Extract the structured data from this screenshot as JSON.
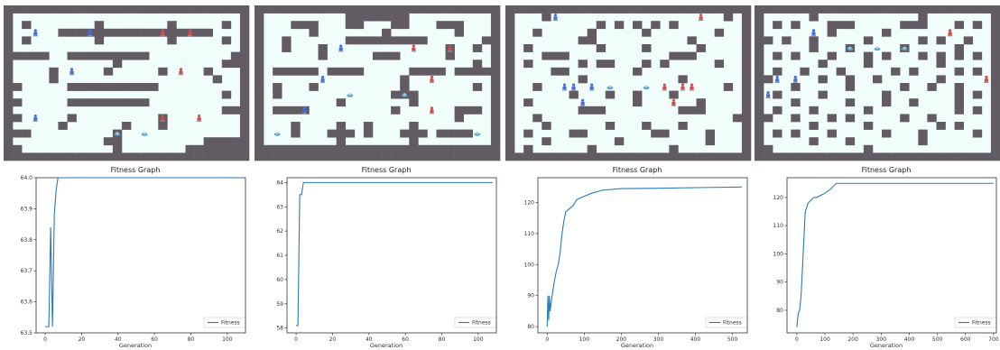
{
  "maps": [
    {
      "grid": [
        "###########################",
        "#.........................#",
        "#.#.......#.......#.....#.#",
        "#.....#################...#",
        "#.#.......#.......#.....#.#",
        "#.........................#",
        "#####..#########.........##",
        "#...........#...........###",
        "#....#.....#.....#....#...#",
        "#....#.................#..#",
        "##.....##########.........#",
        "#.......................#.#",
        "##.....#########..........#",
        "#.......................###",
        "##.....#.........#........#",
        "#.....#......#...#........#",
        "###.........#.............#",
        "#..........##.........#####",
        "##..........#.......#######",
        "###########################"
      ],
      "agents": [
        {
          "row": 3,
          "col": 3,
          "team": "blue"
        },
        {
          "row": 3,
          "col": 9,
          "team": "blue"
        },
        {
          "row": 3,
          "col": 17,
          "team": "red"
        },
        {
          "row": 3,
          "col": 20,
          "team": "red"
        },
        {
          "row": 8,
          "col": 7,
          "team": "blue"
        },
        {
          "row": 8,
          "col": 19,
          "team": "red"
        },
        {
          "row": 14,
          "col": 3,
          "team": "blue"
        },
        {
          "row": 14,
          "col": 17,
          "team": "red"
        },
        {
          "row": 14,
          "col": 21,
          "team": "red"
        }
      ],
      "items": [
        {
          "row": 16,
          "col": 12
        },
        {
          "row": 16,
          "col": 15
        }
      ]
    },
    {
      "grid": [
        "###########################",
        "#.........#######.........#",
        "#...###...##...##...###...#",
        "#.....#.......#.......#...#",
        "#..#......#########......##",
        "#..#...#.............#..#.#",
        "#......#.....###.....#....#",
        "#.......................#.#",
        "#.#####.####.....####.#####",
        "#...............#.........#",
        "#.#...#.........#.......#.#",
        "#.#............###........#",
        "#........#.......#........#",
        "#.####.........#......###.#",
        "#.....................#...#",
        "#...#....#..#....#........#",
        "#...#...###.#...###.####..#",
        "#........#.......#........#",
        "###########################",
        "###########################"
      ],
      "agents": [
        {
          "row": 5,
          "col": 9,
          "team": "blue"
        },
        {
          "row": 5,
          "col": 17,
          "team": "red"
        },
        {
          "row": 5,
          "col": 21,
          "team": "red"
        },
        {
          "row": 9,
          "col": 7,
          "team": "blue"
        },
        {
          "row": 9,
          "col": 19,
          "team": "red"
        },
        {
          "row": 13,
          "col": 5,
          "team": "blue"
        },
        {
          "row": 13,
          "col": 19,
          "team": "red"
        }
      ],
      "items": [
        {
          "row": 11,
          "col": 10
        },
        {
          "row": 11,
          "col": 16
        },
        {
          "row": 16,
          "col": 2
        },
        {
          "row": 16,
          "col": 24
        }
      ]
    },
    {
      "grid": [
        "###########################",
        "#...#...................#.#",
        "#.........#.#.#.#.#.......#",
        "#..#.....#.....#.......#..#",
        "#.......##..........#.....#",
        "#.#.......#....#.....#....#",
        "#...###...........###.....#",
        "#.#.....#.##...#.#.....#..#",
        "#....##.......#...........#",
        "#.......#..........#......#",
        "#..#....................#.#",
        "#......#...#..#...#.......#",
        "#.#...........#......#....#",
        "#.......###........###....#",
        "#..#.....................##",
        "#...#......#...#...#......#",
        "#.#....##.......##....#...#",
        "#...#.......#.........#...#",
        "#.#......#........#.......#",
        "###########################"
      ],
      "agents": [
        {
          "row": 1,
          "col": 5,
          "team": "blue"
        },
        {
          "row": 1,
          "col": 21,
          "team": "red"
        },
        {
          "row": 10,
          "col": 6,
          "team": "blue"
        },
        {
          "row": 10,
          "col": 7,
          "team": "blue"
        },
        {
          "row": 10,
          "col": 9,
          "team": "blue"
        },
        {
          "row": 10,
          "col": 17,
          "team": "red"
        },
        {
          "row": 10,
          "col": 19,
          "team": "red"
        },
        {
          "row": 10,
          "col": 20,
          "team": "red"
        },
        {
          "row": 12,
          "col": 8,
          "team": "blue"
        },
        {
          "row": 12,
          "col": 18,
          "team": "red"
        }
      ],
      "items": [
        {
          "row": 10,
          "col": 11
        },
        {
          "row": 10,
          "col": 15
        }
      ]
    },
    {
      "grid": [
        "###########################",
        "#.....#...........#.......#",
        "#.#.#...###.....###...#.#.#",
        "#.......#.....#...........#",
        "##.#..#.....#.....#.#..#..#",
        "#.....#...#.....#.....#...#",
        "#.#.#...#...#.#...#.#.#.#.#",
        "#......#....#.......#.....#",
        "#.#..#...#.....#.#....#.#.#",
        "##.....#..#..#......#.....#",
        "#...#.....#.....#..#..#...#",
        "#.#....#......#.......#.#.#",
        "#...#.....#...#..#....#...#",
        "#.#...#.....#.........#.#.#",
        "##..#...#.#.....#..#......#",
        "#.....#.....#.......#.#...#",
        "#.#.#...#.....#...#.....#.#",
        "#.....#...#.......#.......#",
        "##..........#.............#",
        "###########################"
      ],
      "agents": [
        {
          "row": 3,
          "col": 6,
          "team": "blue"
        },
        {
          "row": 3,
          "col": 21,
          "team": "red"
        },
        {
          "row": 9,
          "col": 2,
          "team": "blue"
        },
        {
          "row": 9,
          "col": 4,
          "team": "blue"
        },
        {
          "row": 9,
          "col": 25,
          "team": "red"
        },
        {
          "row": 11,
          "col": 1,
          "team": "blue"
        }
      ],
      "items": [
        {
          "row": 5,
          "col": 10
        },
        {
          "row": 5,
          "col": 13
        },
        {
          "row": 5,
          "col": 16
        }
      ]
    }
  ],
  "chart_data": [
    {
      "type": "line",
      "title": "Fitness Graph",
      "xlabel": "Generation",
      "ylabel": "",
      "xlim": [
        -5,
        110
      ],
      "ylim": [
        63.5,
        64.0
      ],
      "xticks": [
        0,
        20,
        40,
        60,
        80,
        100
      ],
      "yticks": [
        63.5,
        63.6,
        63.7,
        63.8,
        63.9,
        64.0
      ],
      "ytick_labels": [
        "63.5",
        "63.6",
        "63.7",
        "63.8",
        "63.9",
        "64.0"
      ],
      "legend": "lower-right",
      "series": [
        {
          "name": "Fitness",
          "x": [
            0,
            1,
            2,
            3,
            4,
            5,
            6,
            7,
            8,
            108
          ],
          "y": [
            63.52,
            63.52,
            63.52,
            63.84,
            63.52,
            63.88,
            63.96,
            64.0,
            64.0,
            64.0
          ]
        }
      ]
    },
    {
      "type": "line",
      "title": "Fitness Graph",
      "xlabel": "Generation",
      "ylabel": "",
      "xlim": [
        -5,
        110
      ],
      "ylim": [
        57.8,
        64.2
      ],
      "xticks": [
        0,
        20,
        40,
        60,
        80,
        100
      ],
      "yticks": [
        58,
        59,
        60,
        61,
        62,
        63,
        64
      ],
      "ytick_labels": [
        "58",
        "59",
        "60",
        "61",
        "62",
        "63",
        "64"
      ],
      "legend": "lower-right",
      "series": [
        {
          "name": "Fitness",
          "x": [
            0,
            1,
            2,
            3,
            4,
            5,
            6,
            7,
            108
          ],
          "y": [
            58.1,
            58.1,
            63.5,
            63.5,
            64.0,
            64.0,
            64.0,
            64.0,
            64.0
          ]
        }
      ]
    },
    {
      "type": "line",
      "title": "Fitness Graph",
      "xlabel": "Generation",
      "ylabel": "",
      "xlim": [
        -25,
        540
      ],
      "ylim": [
        78,
        128
      ],
      "xticks": [
        0,
        100,
        200,
        300,
        400,
        500
      ],
      "yticks": [
        80,
        90,
        100,
        110,
        120
      ],
      "ytick_labels": [
        "80",
        "90",
        "100",
        "110",
        "120"
      ],
      "legend": "lower-right",
      "series": [
        {
          "name": "Fitness",
          "x": [
            0,
            2,
            4,
            6,
            8,
            12,
            16,
            20,
            25,
            30,
            35,
            40,
            45,
            50,
            60,
            70,
            80,
            100,
            120,
            150,
            200,
            300,
            400,
            525
          ],
          "y": [
            80,
            90,
            82,
            90,
            85,
            89,
            92,
            95,
            98,
            100,
            104,
            110,
            114,
            117,
            118,
            119,
            121,
            122,
            123,
            124,
            124.5,
            124.6,
            124.8,
            125
          ]
        }
      ]
    },
    {
      "type": "line",
      "title": "Fitness Graph",
      "xlabel": "Generation",
      "ylabel": "",
      "xlim": [
        -35,
        710
      ],
      "ylim": [
        72,
        127
      ],
      "xticks": [
        0,
        100,
        200,
        300,
        400,
        500,
        600,
        700
      ],
      "yticks": [
        80,
        90,
        100,
        110,
        120
      ],
      "ytick_labels": [
        "80",
        "90",
        "100",
        "110",
        "120"
      ],
      "legend": "lower-right",
      "series": [
        {
          "name": "Fitness",
          "x": [
            0,
            5,
            10,
            15,
            20,
            25,
            30,
            40,
            50,
            60,
            70,
            80,
            90,
            100,
            120,
            140,
            200,
            400,
            700
          ],
          "y": [
            74,
            79,
            80,
            85,
            95,
            105,
            115,
            118,
            119,
            120,
            120,
            120.5,
            121,
            121.5,
            123,
            125,
            125,
            125,
            125
          ]
        }
      ]
    }
  ]
}
